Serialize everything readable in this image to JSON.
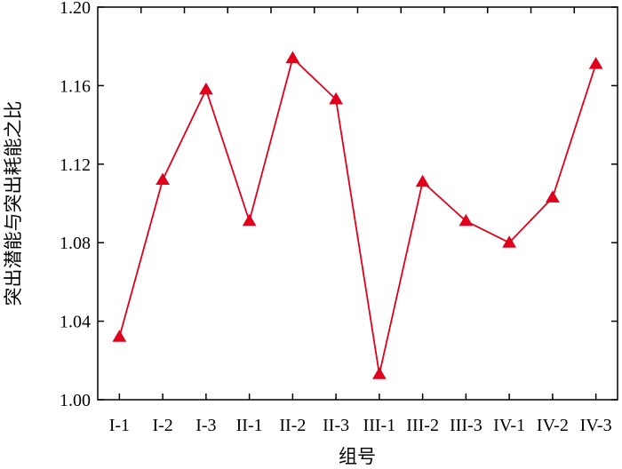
{
  "chart_data": {
    "type": "line",
    "categories": [
      "I-1",
      "I-2",
      "I-3",
      "II-1",
      "II-2",
      "II-3",
      "III-1",
      "III-2",
      "III-3",
      "IV-1",
      "IV-2",
      "IV-3"
    ],
    "series": [
      {
        "values": [
          1.032,
          1.112,
          1.158,
          1.091,
          1.174,
          1.153,
          1.013,
          1.111,
          1.091,
          1.08,
          1.103,
          1.171
        ],
        "color": "#e0001b",
        "marker": "triangle"
      }
    ],
    "title": "",
    "xlabel": "组号",
    "ylabel": "突出潜能与突出耗能之比",
    "ylim": [
      1.0,
      1.2
    ],
    "yticks": [
      "1.00",
      "1.04",
      "1.08",
      "1.12",
      "1.16",
      "1.20"
    ],
    "grid": false,
    "legend": "none"
  }
}
